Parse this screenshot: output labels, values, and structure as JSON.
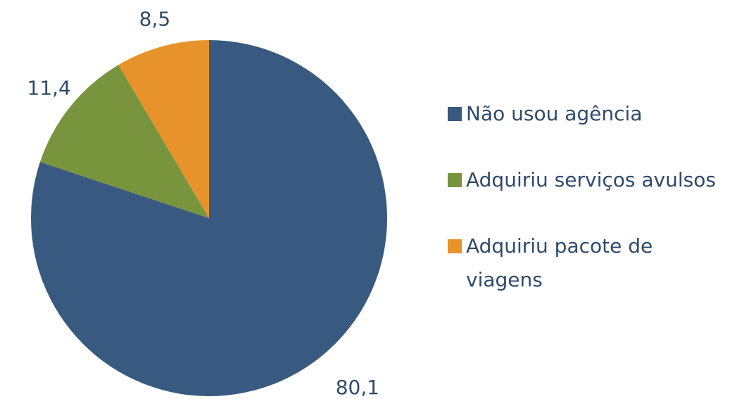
{
  "chart_data": {
    "type": "pie",
    "categories": [
      "Não usou agência",
      "Adquiriu serviços avulsos",
      "Adquiriu pacote de viagens"
    ],
    "values": [
      80.1,
      11.4,
      8.5
    ],
    "value_labels": [
      "80,1",
      "11,4",
      "8,5"
    ],
    "colors": [
      "#385a80",
      "#78953d",
      "#e8922b"
    ],
    "legend": "right"
  }
}
